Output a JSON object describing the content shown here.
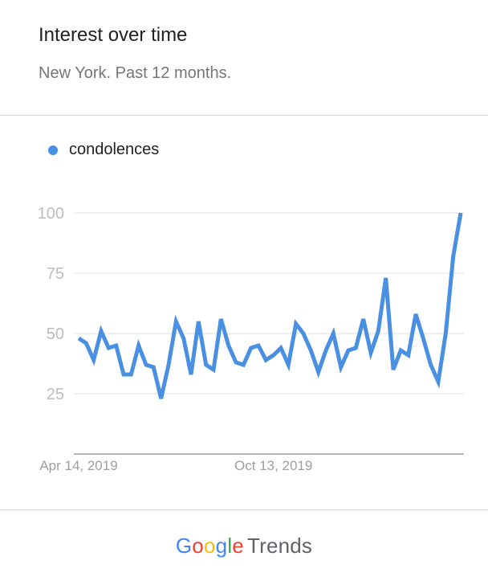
{
  "header": {
    "title": "Interest over time",
    "subtitle": "New York. Past 12 months."
  },
  "footer": {
    "logo_letters": [
      {
        "ch": "G",
        "color": "#4285F4"
      },
      {
        "ch": "o",
        "color": "#EA4335"
      },
      {
        "ch": "o",
        "color": "#FBBC05"
      },
      {
        "ch": "g",
        "color": "#4285F4"
      },
      {
        "ch": "l",
        "color": "#34A853"
      },
      {
        "ch": "e",
        "color": "#EA4335"
      }
    ],
    "trends_label": "Trends"
  },
  "chart_data": {
    "type": "line",
    "series": [
      {
        "name": "condolences",
        "color": "#4A90E2",
        "values": [
          48,
          46,
          39,
          51,
          44,
          45,
          33,
          33,
          45,
          37,
          36,
          23,
          37,
          55,
          48,
          33,
          55,
          37,
          35,
          56,
          45,
          38,
          37,
          44,
          45,
          39,
          41,
          44,
          37,
          54,
          50,
          43,
          34,
          43,
          50,
          36,
          43,
          44,
          56,
          42,
          51,
          73,
          35,
          43,
          41,
          58,
          48,
          37,
          30,
          50,
          82,
          100
        ]
      }
    ],
    "x_tick_labels": [
      {
        "index": 0,
        "label": "Apr 14, 2019"
      },
      {
        "index": 26,
        "label": "Oct 13, 2019"
      }
    ],
    "y_ticks": [
      25,
      50,
      75,
      100
    ],
    "ylim": [
      0,
      100
    ],
    "grid": true,
    "legend": "top-left"
  }
}
